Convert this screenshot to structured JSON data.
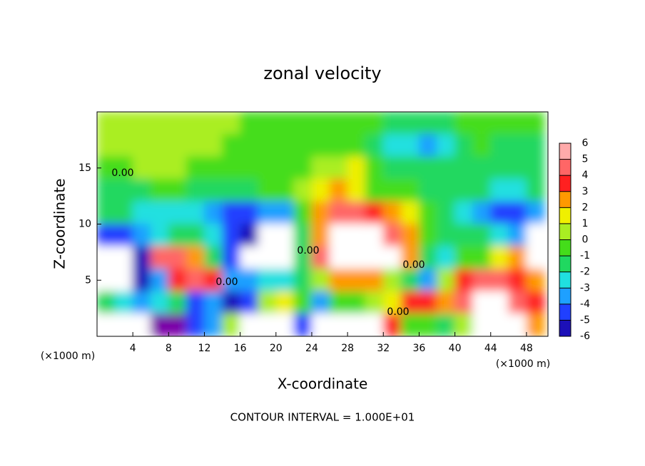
{
  "chart_data": {
    "type": "contour",
    "title": "zonal velocity",
    "xlabel": "X-coordinate",
    "ylabel": "Z-coordinate",
    "xunit": "(×1000 m)",
    "annotation": "CONTOUR INTERVAL = 1.000E+01",
    "contour_labels": [
      "0.00",
      "0.00",
      "0.00",
      "0.00",
      "0.00"
    ],
    "xlim": [
      0,
      50.4
    ],
    "ylim": [
      0,
      20
    ],
    "xticks": [
      4,
      8,
      12,
      16,
      20,
      24,
      28,
      32,
      36,
      40,
      44,
      48
    ],
    "yticks": [
      5,
      10,
      15
    ],
    "x": [
      1,
      3,
      5,
      7,
      9,
      11,
      13,
      15,
      17,
      19,
      21,
      23,
      25,
      27,
      29,
      31,
      33,
      35,
      37,
      39,
      41,
      43,
      45,
      47,
      49
    ],
    "y": [
      19,
      17,
      15,
      13,
      11,
      9,
      7,
      5,
      3,
      1
    ],
    "z": [
      [
        1,
        1,
        1.5,
        1.5,
        1.5,
        1,
        1,
        1,
        0.5,
        0.5,
        0.5,
        0.5,
        0.5,
        0,
        0,
        0,
        -0.5,
        -1,
        -1,
        -0.5,
        0.5,
        0.5,
        0.5,
        0.5,
        0.5
      ],
      [
        1,
        1,
        1.5,
        1.5,
        1.5,
        1,
        1,
        0.5,
        0.5,
        0.5,
        0.5,
        0,
        0,
        0.5,
        0.5,
        -0.5,
        -1.5,
        -2,
        -2.5,
        -1.5,
        -0.5,
        0,
        -0.5,
        -1,
        -1
      ],
      [
        0,
        0.5,
        1,
        1,
        1,
        0.5,
        0.5,
        0.5,
        0.5,
        0.5,
        0.5,
        0.5,
        1,
        1.5,
        2,
        0,
        -0.5,
        -1,
        -1,
        -1,
        -0.5,
        -0.5,
        -1,
        -1,
        -0.5
      ],
      [
        -0.5,
        -0.5,
        -0.5,
        0,
        0,
        -0.5,
        -0.5,
        -0.5,
        -0.5,
        0,
        0.5,
        1,
        2,
        3,
        2,
        0,
        0.5,
        0.5,
        -0.5,
        -1,
        -1,
        -1,
        -1.5,
        -2,
        -1
      ],
      [
        -1,
        -1,
        -1.5,
        -2,
        -2,
        -2,
        -3,
        -4,
        -4,
        -3,
        -3,
        0.5,
        3,
        5,
        5,
        4,
        3,
        2,
        0,
        -1,
        -2,
        -3,
        -4,
        -4,
        -3
      ],
      [
        -4,
        -4,
        -3,
        -2,
        -1,
        -1,
        -2,
        -4,
        -5,
        8,
        8,
        -1,
        3,
        8,
        8,
        8,
        5,
        3,
        0,
        -1,
        -1,
        -1,
        -2,
        -3,
        8
      ],
      [
        -8,
        -8,
        -5,
        5,
        5,
        3,
        -1,
        -4,
        8,
        8,
        8,
        -1,
        5,
        8,
        8,
        8,
        8,
        3,
        -1,
        -2,
        0,
        0,
        2,
        3,
        8
      ],
      [
        -8,
        -8,
        -5,
        -3,
        4,
        5,
        4,
        -3,
        -3,
        -2,
        -2,
        -1,
        1,
        3,
        3,
        3,
        1,
        -1,
        -3,
        1,
        4,
        5,
        5,
        4,
        3
      ],
      [
        -1,
        -2,
        -3,
        -2,
        -1,
        -4,
        -3,
        -5,
        -4,
        1,
        2,
        0,
        -3,
        0,
        0,
        1,
        2,
        4,
        4,
        3,
        5,
        8,
        8,
        6,
        4
      ],
      [
        8,
        8,
        8,
        -6,
        -6,
        -4,
        -3,
        1,
        8,
        8,
        8,
        -4,
        -8,
        -8,
        -8,
        8,
        4,
        0,
        0,
        -1,
        1,
        -8,
        -8,
        -8,
        3
      ]
    ],
    "levels": [
      -6,
      -5,
      -4,
      -3,
      -2,
      -1,
      0,
      1,
      2,
      3,
      4,
      5,
      6
    ],
    "colorscale": [
      "#7a00a8",
      "#1c10b8",
      "#2040ff",
      "#1ea0ff",
      "#20e0e0",
      "#20d860",
      "#44dd1a",
      "#aaee22",
      "#f0f000",
      "#ff9900",
      "#ff2020",
      "#ff6666",
      "#ffaaaa"
    ],
    "out_of_range_color": "#ffffff"
  }
}
